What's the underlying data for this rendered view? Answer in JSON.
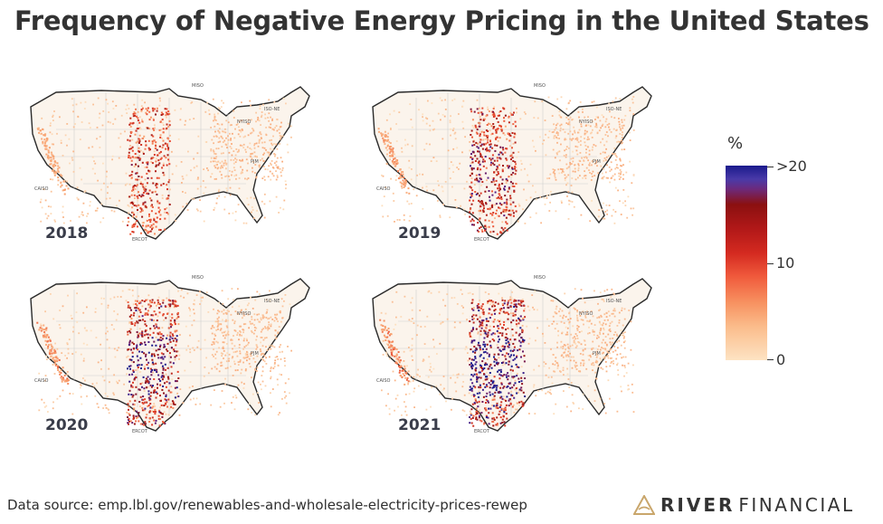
{
  "title": "Frequency of Negative Energy Pricing in the United States",
  "panels": [
    {
      "year": "2018",
      "intensity": 0.35,
      "isos": {
        "miso": "MISO",
        "isone": "ISO-NE",
        "nyiso": "NYISO",
        "pjm": "PJM",
        "caiso": "CAISO",
        "ercot": "ERCOT"
      }
    },
    {
      "year": "2019",
      "intensity": 0.55,
      "isos": {
        "miso": "MISO",
        "isone": "ISO-NE",
        "nyiso": "NYISO",
        "pjm": "PJM",
        "caiso": "CAISO",
        "ercot": "ERCOT"
      }
    },
    {
      "year": "2020",
      "intensity": 0.75,
      "isos": {
        "miso": "MISO",
        "isone": "ISO-NE",
        "nyiso": "NYISO",
        "pjm": "PJM",
        "caiso": "CAISO",
        "ercot": "ERCOT"
      }
    },
    {
      "year": "2021",
      "intensity": 0.95,
      "isos": {
        "miso": "MISO",
        "isone": "ISO-NE",
        "nyiso": "NYISO",
        "pjm": "PJM",
        "caiso": "CAISO",
        "ercot": "ERCOT"
      }
    }
  ],
  "legend": {
    "title": "%",
    "ticks": [
      ">20",
      "10",
      "0"
    ],
    "colors": {
      "low": "#fde3c3",
      "mid": "#e8442c",
      "high": "#8b1010",
      "max": "#1a1a8c"
    }
  },
  "source": "Data source: emp.lbl.gov/renewables-and-wholesale-electricity-prices-rewep",
  "brand": {
    "name": "RIVER",
    "sub": "FINANCIAL",
    "color": "#c9a66b"
  }
}
